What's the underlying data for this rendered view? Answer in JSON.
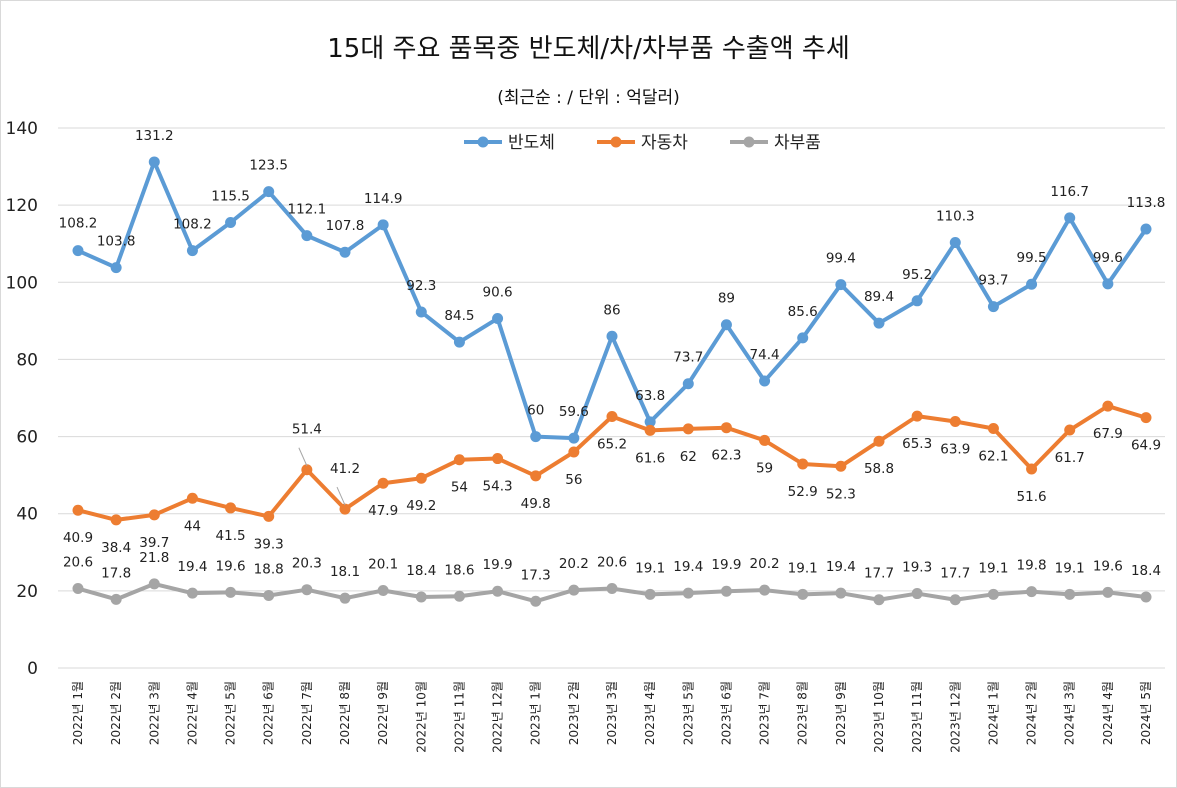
{
  "chart_data": {
    "type": "line",
    "title": "15대 주요 품목중 반도체/차/차부품 수출액 추세",
    "subtitle": "(최근순 :  / 단위 : 억달러)",
    "xlabel": "",
    "ylabel": "",
    "ylim": [
      0,
      140
    ],
    "yticks": [
      "0",
      "20",
      "40",
      "60",
      "80",
      "100",
      "120",
      "140"
    ],
    "grid": true,
    "legend_position": "top-center",
    "categories": [
      "2022년 1월",
      "2022년 2월",
      "2022년 3월",
      "2022년 4월",
      "2022년 5월",
      "2022년 6월",
      "2022년 7월",
      "2022년 8월",
      "2022년 9월",
      "2022년 10월",
      "2022년 11월",
      "2022년 12월",
      "2023년 1월",
      "2023년 2월",
      "2023년 3월",
      "2023년 4월",
      "2023년 5월",
      "2023년 6월",
      "2023년 7월",
      "2023년 8월",
      "2023년 9월",
      "2023년 10월",
      "2023년 11월",
      "2023년 12월",
      "2024년 1월",
      "2024년 2월",
      "2024년 3월",
      "2024년 4월",
      "2024년 5월"
    ],
    "series": [
      {
        "name": "반도체",
        "color": "#5b9bd5",
        "values": [
          108.2,
          103.8,
          131.2,
          108.2,
          115.5,
          123.5,
          112.1,
          107.8,
          114.9,
          92.3,
          84.5,
          90.6,
          60,
          59.6,
          86,
          63.8,
          73.7,
          89,
          74.4,
          85.6,
          99.4,
          89.4,
          95.2,
          110.3,
          93.7,
          99.5,
          116.7,
          99.6,
          113.8
        ],
        "labels": [
          "108.2",
          "103.8",
          "131.2",
          "108.2",
          "115.5",
          "123.5",
          "112.1",
          "107.8",
          "114.9",
          "92.3",
          "84.5",
          "90.6",
          "60",
          "59.6",
          "86",
          "63.8",
          "73.7",
          "89",
          "74.4",
          "85.6",
          "99.4",
          "89.4",
          "95.2",
          "110.3",
          "93.7",
          "99.5",
          "116.7",
          "99.6",
          "113.8"
        ]
      },
      {
        "name": "자동차",
        "color": "#ed7d31",
        "values": [
          40.9,
          38.4,
          39.7,
          44,
          41.5,
          39.3,
          51.4,
          41.2,
          47.9,
          49.2,
          54,
          54.3,
          49.8,
          56,
          65.2,
          61.6,
          62,
          62.3,
          59,
          52.9,
          52.3,
          58.8,
          65.3,
          63.9,
          62.1,
          51.6,
          61.7,
          67.9,
          64.9
        ],
        "labels": [
          "40.9",
          "38.4",
          "39.7",
          "44",
          "41.5",
          "39.3",
          "51.4",
          "41.2",
          "47.9",
          "49.2",
          "54",
          "54.3",
          "49.8",
          "56",
          "65.2",
          "61.6",
          "62",
          "62.3",
          "59",
          "52.9",
          "52.3",
          "58.8",
          "65.3",
          "63.9",
          "62.1",
          "51.6",
          "61.7",
          "67.9",
          "64.9"
        ]
      },
      {
        "name": "차부품",
        "color": "#a5a5a5",
        "values": [
          20.6,
          17.8,
          21.8,
          19.4,
          19.6,
          18.8,
          20.3,
          18.1,
          20.1,
          18.4,
          18.6,
          19.9,
          17.3,
          20.2,
          20.6,
          19.1,
          19.4,
          19.9,
          20.2,
          19.1,
          19.4,
          17.7,
          19.3,
          17.7,
          19.1,
          19.8,
          19.1,
          19.6,
          18.4
        ],
        "labels": [
          "20.6",
          "17.8",
          "21.8",
          "19.4",
          "19.6",
          "18.8",
          "20.3",
          "18.1",
          "20.1",
          "18.4",
          "18.6",
          "19.9",
          "17.3",
          "20.2",
          "20.6",
          "19.1",
          "19.4",
          "19.9",
          "20.2",
          "19.1",
          "19.4",
          "17.7",
          "19.3",
          "17.7",
          "19.1",
          "19.8",
          "19.1",
          "19.6",
          "18.4"
        ]
      }
    ]
  }
}
